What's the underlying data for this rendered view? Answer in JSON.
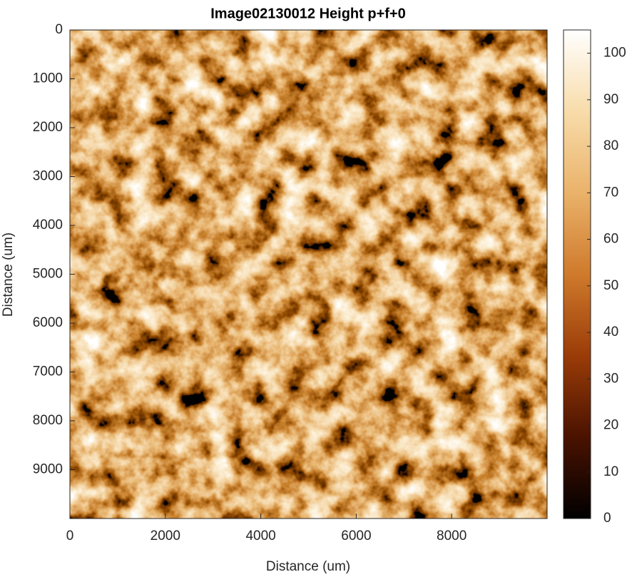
{
  "chart_data": {
    "type": "heatmap",
    "title": "Image02130012 Height p+f+0",
    "xlabel": "Distance (um)",
    "ylabel": "Distance (um)",
    "xlim": [
      0,
      10000
    ],
    "xticks": [
      0,
      2000,
      4000,
      6000,
      8000
    ],
    "ylim": [
      0,
      10000
    ],
    "yticks": [
      0,
      1000,
      2000,
      3000,
      4000,
      5000,
      6000,
      7000,
      8000,
      9000
    ],
    "y_reversed": true,
    "colorbar_lim": [
      0,
      105
    ],
    "colorbar_ticks": [
      0,
      10,
      20,
      30,
      40,
      50,
      60,
      70,
      80,
      90,
      100
    ],
    "colormap": [
      "#000000",
      "#4a1200",
      "#9a3c08",
      "#cf7a2c",
      "#eab26a",
      "#f8dcaa",
      "#ffffff"
    ]
  }
}
